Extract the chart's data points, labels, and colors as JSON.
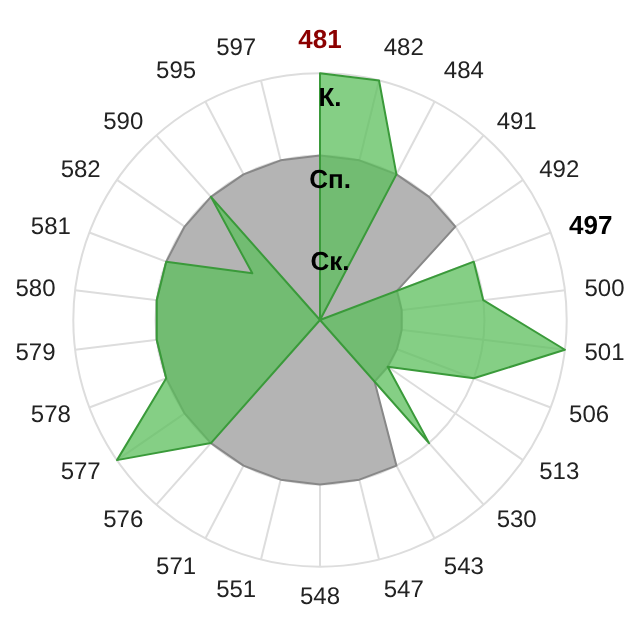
{
  "chart_data": {
    "type": "radar",
    "categories": [
      "481",
      "482",
      "484",
      "491",
      "492",
      "497",
      "500",
      "501",
      "506",
      "513",
      "530",
      "543",
      "547",
      "548",
      "551",
      "571",
      "576",
      "577",
      "578",
      "579",
      "580",
      "581",
      "582",
      "590",
      "595",
      "597"
    ],
    "series": [
      {
        "color": "#b4b4b4",
        "values": [
          2,
          2,
          2,
          2,
          2,
          1,
          1,
          1,
          1,
          1,
          1,
          2,
          2,
          2,
          2,
          2,
          2,
          2,
          2,
          2,
          2,
          2,
          2,
          2,
          2,
          2
        ]
      },
      {
        "color": "#5cbf5c",
        "values": [
          3,
          3,
          2,
          0,
          0,
          2,
          2,
          3,
          2,
          1,
          2,
          0,
          0,
          0,
          0,
          0,
          2,
          3,
          2,
          2,
          2,
          2,
          1,
          2,
          0,
          0
        ]
      }
    ],
    "ylim": [
      0,
      3
    ],
    "yticks": [
      {
        "value": 1,
        "label": "Ск."
      },
      {
        "value": 2,
        "label": "Сп."
      },
      {
        "value": 3,
        "label": "К."
      }
    ],
    "grid": true,
    "marker": "none"
  }
}
